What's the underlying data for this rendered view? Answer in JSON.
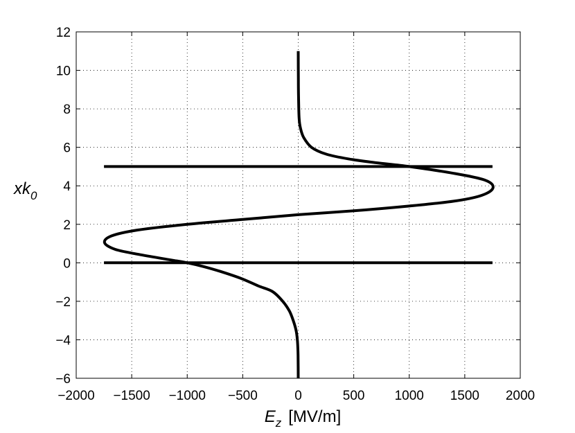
{
  "chart_data": {
    "type": "line",
    "title": "",
    "xlabel": {
      "symbol": "E",
      "subscript": "z",
      "unit": "[MV/m]"
    },
    "ylabel": {
      "symbol": "xk",
      "subscript": "0"
    },
    "xlim": [
      -2000,
      2000
    ],
    "ylim": [
      -6,
      12
    ],
    "xticks": [
      -2000,
      -1500,
      -1000,
      -500,
      0,
      500,
      1000,
      1500,
      2000
    ],
    "yticks": [
      -6,
      -4,
      -2,
      0,
      2,
      4,
      6,
      8,
      10,
      12
    ],
    "grid": true,
    "line_color": "#000000",
    "series": [
      {
        "points": [
          [
            0,
            -6
          ],
          [
            -1,
            -5
          ],
          [
            -3,
            -4.5
          ],
          [
            -8,
            -4
          ],
          [
            -20,
            -3.5
          ],
          [
            -45,
            -3
          ],
          [
            -80,
            -2.5
          ],
          [
            -140,
            -2
          ],
          [
            -230,
            -1.5
          ],
          [
            -360,
            -1.2
          ],
          [
            -520,
            -0.8
          ],
          [
            -700,
            -0.45
          ],
          [
            -850,
            -0.2
          ],
          [
            -1000,
            0
          ],
          [
            -1200,
            0.2
          ],
          [
            -1450,
            0.45
          ],
          [
            -1650,
            0.7
          ],
          [
            -1745,
            1.05
          ],
          [
            -1680,
            1.4
          ],
          [
            -1450,
            1.7
          ],
          [
            -1000,
            2.0
          ],
          [
            -500,
            2.25
          ],
          [
            0,
            2.5
          ],
          [
            500,
            2.7
          ],
          [
            1000,
            2.95
          ],
          [
            1400,
            3.2
          ],
          [
            1650,
            3.5
          ],
          [
            1755,
            3.9
          ],
          [
            1680,
            4.3
          ],
          [
            1400,
            4.65
          ],
          [
            1000,
            5
          ],
          [
            700,
            5.2
          ],
          [
            450,
            5.4
          ],
          [
            250,
            5.65
          ],
          [
            120,
            6.0
          ],
          [
            50,
            6.5
          ],
          [
            20,
            7.0
          ],
          [
            8,
            7.5
          ],
          [
            3,
            8.5
          ],
          [
            1,
            9.5
          ],
          [
            0,
            11
          ]
        ]
      },
      {
        "points": [
          [
            -1750,
            0
          ],
          [
            1750,
            0
          ]
        ]
      },
      {
        "points": [
          [
            -1750,
            5
          ],
          [
            1750,
            5
          ]
        ]
      }
    ]
  }
}
